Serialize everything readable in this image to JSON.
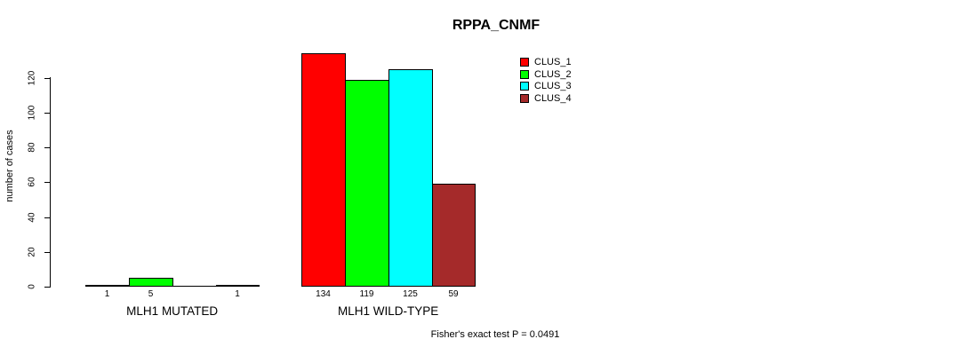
{
  "title": "RPPA_CNMF",
  "chart_data": {
    "type": "bar",
    "title": "RPPA_CNMF",
    "xlabel": "",
    "ylabel": "number of cases",
    "categories": [
      "MLH1 MUTATED",
      "MLH1 WILD-TYPE"
    ],
    "series": [
      {
        "name": "CLUS_1",
        "color": "#ff0000",
        "values": [
          1,
          134
        ]
      },
      {
        "name": "CLUS_2",
        "color": "#00ff00",
        "values": [
          5,
          119
        ]
      },
      {
        "name": "CLUS_3",
        "color": "#00ffff",
        "values": [
          0,
          125
        ]
      },
      {
        "name": "CLUS_4",
        "color": "#a52a2a",
        "values": [
          1,
          59
        ]
      }
    ],
    "bar_value_labels": [
      [
        "1",
        "5",
        "",
        "1"
      ],
      [
        "134",
        "119",
        "125",
        "59"
      ]
    ],
    "yticks": [
      0,
      20,
      40,
      60,
      80,
      100,
      120
    ],
    "ylim": [
      0,
      120
    ],
    "grid": false,
    "legend_position": "right",
    "legend_entries": [
      "CLUS_1",
      "CLUS_2",
      "CLUS_3",
      "CLUS_4"
    ],
    "annotation": "Fisher's exact test P = 0.0491"
  }
}
